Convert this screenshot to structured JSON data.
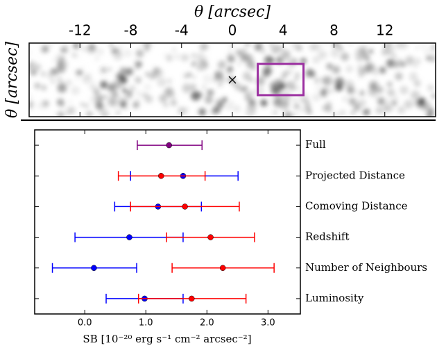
{
  "chart_data": [
    {
      "type": "image",
      "xlabel": "θ [arcsec]",
      "ylabel": "θ [arcsec]",
      "xlim": [
        -16,
        16
      ],
      "xticks": [
        -12,
        -8,
        -4,
        0,
        4,
        8,
        12
      ],
      "marker_x": 0,
      "box_x": [
        2,
        5.6
      ],
      "box_color": "#9b2fa0"
    },
    {
      "type": "errorbar",
      "xlabel": "SB [10⁻²⁰ erg s⁻¹ cm⁻² arcsec⁻²]",
      "categories": [
        "Full",
        "Projected Distance",
        "Comoving Distance",
        "Redshift",
        "Number of Neighbours",
        "Luminosity"
      ],
      "xlim": [
        -0.82,
        3.53
      ],
      "xticks": [
        {
          "value": 0,
          "label": "0.0"
        },
        {
          "value": 1,
          "label": "1.0"
        },
        {
          "value": 2,
          "label": "2.0"
        },
        {
          "value": 3,
          "label": "3.0"
        }
      ],
      "series": [
        {
          "color": "#800080",
          "values": [
            1.38,
            null,
            null,
            null,
            null,
            null
          ],
          "lower": [
            0.86,
            null,
            null,
            null,
            null,
            null
          ],
          "upper": [
            1.92,
            null,
            null,
            null,
            null,
            null
          ]
        },
        {
          "color": "#0000ff",
          "values": [
            null,
            1.61,
            1.2,
            0.73,
            0.15,
            0.98
          ],
          "lower": [
            null,
            0.75,
            0.49,
            -0.16,
            -0.53,
            0.35
          ],
          "upper": [
            null,
            2.51,
            1.91,
            1.61,
            0.85,
            1.61
          ]
        },
        {
          "color": "#ff0000",
          "values": [
            null,
            1.25,
            1.64,
            2.06,
            2.26,
            1.75
          ],
          "lower": [
            null,
            0.55,
            0.75,
            1.34,
            1.43,
            0.88
          ],
          "upper": [
            null,
            1.97,
            2.53,
            2.78,
            3.1,
            2.64
          ]
        }
      ]
    }
  ]
}
